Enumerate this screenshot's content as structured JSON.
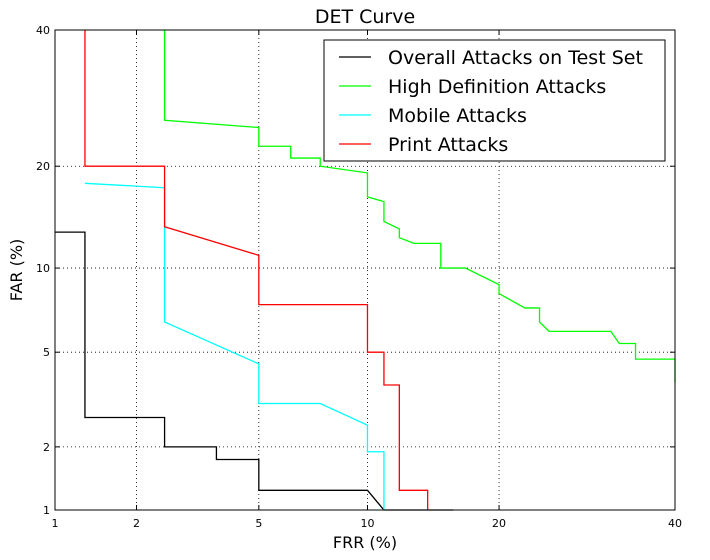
{
  "chart_data": {
    "type": "line",
    "title": "DET Curve",
    "xlabel": "FRR (%)",
    "ylabel": "FAR (%)",
    "xscale": "normal-deviate",
    "yscale": "normal-deviate",
    "xlim": [
      1,
      40
    ],
    "ylim": [
      1,
      40
    ],
    "xticks": [
      1,
      2,
      5,
      10,
      20,
      40
    ],
    "yticks": [
      1,
      2,
      5,
      10,
      20,
      40
    ],
    "xtick_labels": [
      "1",
      "2",
      "5",
      "10",
      "20",
      "40"
    ],
    "ytick_labels": [
      "1",
      "2",
      "5",
      "10",
      "20",
      "40"
    ],
    "grid": true,
    "legend_position": "top-right",
    "series": [
      {
        "name": "Overall Attacks on Test Set",
        "color": "#000000",
        "points": [
          [
            1.0,
            13.0
          ],
          [
            1.3,
            13.0
          ],
          [
            1.3,
            2.7
          ],
          [
            2.5,
            2.7
          ],
          [
            2.5,
            2.0
          ],
          [
            3.7,
            2.0
          ],
          [
            3.7,
            1.75
          ],
          [
            5.0,
            1.75
          ],
          [
            5.0,
            1.25
          ],
          [
            10.0,
            1.25
          ],
          [
            11.0,
            1.0
          ],
          [
            16.0,
            1.0
          ]
        ]
      },
      {
        "name": "High Definition Attacks",
        "color": "#00ff00",
        "points": [
          [
            2.5,
            40.0
          ],
          [
            2.5,
            26.0
          ],
          [
            5.0,
            25.0
          ],
          [
            5.0,
            22.5
          ],
          [
            6.2,
            22.5
          ],
          [
            6.2,
            21.0
          ],
          [
            7.5,
            21.0
          ],
          [
            7.5,
            20.0
          ],
          [
            10.0,
            19.2
          ],
          [
            10.0,
            16.5
          ],
          [
            11.0,
            16.0
          ],
          [
            11.0,
            14.0
          ],
          [
            12.0,
            13.3
          ],
          [
            12.0,
            12.5
          ],
          [
            13.0,
            12.0
          ],
          [
            14.0,
            12.0
          ],
          [
            15.0,
            12.0
          ],
          [
            15.0,
            10.0
          ],
          [
            17.0,
            10.0
          ],
          [
            20.0,
            8.8
          ],
          [
            20.0,
            8.2
          ],
          [
            22.5,
            7.3
          ],
          [
            24.0,
            7.3
          ],
          [
            24.0,
            6.5
          ],
          [
            25.0,
            6.0
          ],
          [
            32.0,
            6.0
          ],
          [
            33.0,
            5.4
          ],
          [
            35.0,
            5.4
          ],
          [
            35.0,
            4.7
          ],
          [
            40.0,
            4.7
          ],
          [
            40.0,
            3.8
          ]
        ]
      },
      {
        "name": "Mobile Attacks",
        "color": "#00ffff",
        "points": [
          [
            1.3,
            18.0
          ],
          [
            2.5,
            17.5
          ],
          [
            2.5,
            13.5
          ],
          [
            2.5,
            6.5
          ],
          [
            5.0,
            4.5
          ],
          [
            5.0,
            3.1
          ],
          [
            7.5,
            3.1
          ],
          [
            10.0,
            2.5
          ],
          [
            10.0,
            1.9
          ],
          [
            11.0,
            1.9
          ],
          [
            11.0,
            1.0
          ]
        ]
      },
      {
        "name": "Print Attacks",
        "color": "#ff0000",
        "points": [
          [
            1.3,
            40.0
          ],
          [
            1.3,
            20.0
          ],
          [
            2.5,
            20.0
          ],
          [
            2.5,
            13.5
          ],
          [
            5.0,
            11.0
          ],
          [
            5.0,
            7.5
          ],
          [
            10.0,
            7.5
          ],
          [
            10.0,
            5.0
          ],
          [
            11.0,
            5.0
          ],
          [
            11.0,
            3.7
          ],
          [
            12.0,
            3.7
          ],
          [
            12.0,
            1.25
          ],
          [
            14.0,
            1.25
          ],
          [
            14.0,
            1.0
          ]
        ]
      }
    ]
  }
}
